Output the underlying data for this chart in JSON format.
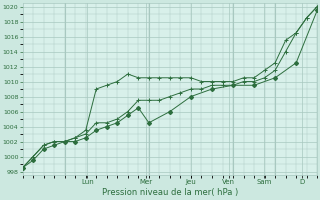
{
  "xlabel": "Pression niveau de la mer( hPa )",
  "bg_color": "#cce8e0",
  "plot_bg_color": "#d8f0ea",
  "grid_color": "#a8c8c0",
  "line_color": "#2d6e3e",
  "ylim": [
    997.5,
    1020.5
  ],
  "yticks": [
    998,
    1000,
    1002,
    1004,
    1006,
    1008,
    1010,
    1012,
    1014,
    1016,
    1018,
    1020
  ],
  "day_labels": [
    "Lun",
    "Mer",
    "Jeu",
    "Ven",
    "Sam",
    "D"
  ],
  "day_positions_norm": [
    0.22,
    0.42,
    0.57,
    0.7,
    0.82,
    0.95
  ],
  "n_hours": 168,
  "line_upper_x": [
    0,
    6,
    12,
    18,
    24,
    30,
    36,
    42,
    48,
    54,
    60,
    66,
    72,
    78,
    84,
    90,
    96,
    102,
    108,
    114,
    120,
    126,
    132,
    138,
    144,
    150,
    156,
    162,
    168
  ],
  "line_upper_y": [
    998.5,
    1000.0,
    1001.5,
    1002.0,
    1002.0,
    1002.5,
    1003.5,
    1009.0,
    1009.5,
    1010.0,
    1011.0,
    1010.5,
    1010.5,
    1010.5,
    1010.5,
    1010.5,
    1010.5,
    1010.0,
    1010.0,
    1010.0,
    1010.0,
    1010.5,
    1010.5,
    1011.5,
    1012.5,
    1015.5,
    1016.5,
    1018.5,
    1020.0
  ],
  "line_mid_x": [
    0,
    6,
    12,
    18,
    24,
    30,
    36,
    42,
    48,
    54,
    60,
    66,
    72,
    78,
    84,
    90,
    96,
    102,
    108,
    114,
    120,
    126,
    132,
    138,
    144,
    150,
    156,
    162,
    168
  ],
  "line_mid_y": [
    998.5,
    1000.0,
    1001.5,
    1002.0,
    1002.0,
    1002.5,
    1003.0,
    1004.5,
    1004.5,
    1005.0,
    1006.0,
    1007.5,
    1007.5,
    1007.5,
    1008.0,
    1008.5,
    1009.0,
    1009.0,
    1009.5,
    1009.5,
    1009.5,
    1010.0,
    1010.0,
    1010.5,
    1011.5,
    1014.0,
    1016.5,
    1018.5,
    1020.0
  ],
  "line_lower_x": [
    0,
    6,
    12,
    18,
    24,
    30,
    36,
    42,
    48,
    54,
    60,
    66,
    72,
    84,
    96,
    108,
    120,
    132,
    144,
    156,
    168
  ],
  "line_lower_y": [
    998.5,
    999.5,
    1001.0,
    1001.5,
    1002.0,
    1002.0,
    1002.5,
    1003.5,
    1004.0,
    1004.5,
    1005.5,
    1006.5,
    1004.5,
    1006.0,
    1008.0,
    1009.0,
    1009.5,
    1009.5,
    1010.5,
    1012.5,
    1019.5
  ]
}
